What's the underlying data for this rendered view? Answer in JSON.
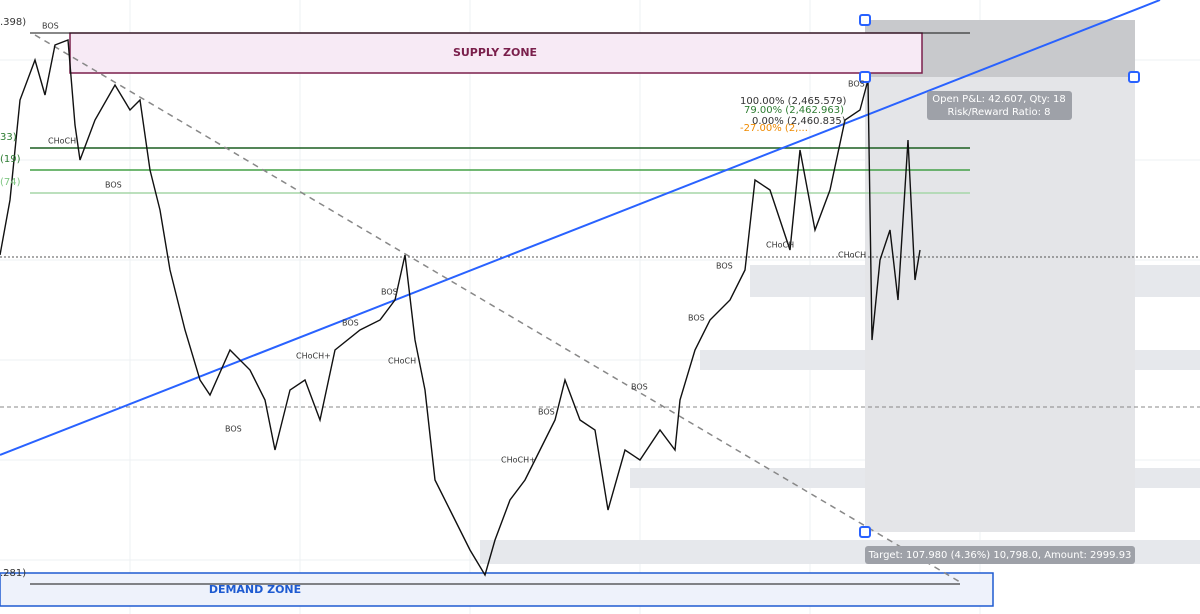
{
  "zones": {
    "supply": "SUPPLY ZONE",
    "demand": "DEMAND ZONE"
  },
  "position": {
    "pnl": "Open P&L: 42.607, Qty: 18",
    "ratio": "Risk/Reward Ratio: 8",
    "target": "Target: 107.980 (4.36%) 10,798.0, Amount: 2999.93"
  },
  "fib": [
    "100.00% (2,465.579)",
    "79.00% (2,462.963)",
    "0.00% (2,460.835)",
    "-27.00% (2,..."
  ],
  "side_labels": [
    ".398)",
    "33)",
    "(19)",
    "(74)",
    ".281)"
  ],
  "markers": {
    "bos": "BOS",
    "choch": "CHoCH",
    "choch_plus": "CHoCH+"
  }
}
